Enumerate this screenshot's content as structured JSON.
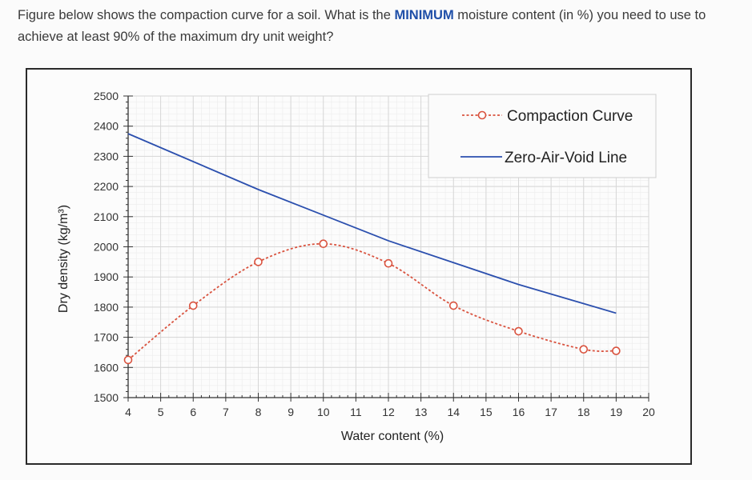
{
  "question": {
    "part1": "Figure below shows the compaction curve for a soil. What is the ",
    "emphasis": "MINIMUM",
    "part2": " moisture content (in %) you need to use to achieve at least 90% of the maximum dry unit weight?"
  },
  "colors": {
    "compaction": "#d9533f",
    "zav": "#2b4fae",
    "grid": "#d6d6d6",
    "axis": "#333333"
  },
  "chart_data": {
    "type": "line",
    "title": "",
    "xlabel": "Water content (%)",
    "ylabel": "Dry density (kg/m³)",
    "xlim": [
      4,
      20
    ],
    "ylim": [
      1500,
      2500
    ],
    "x_ticks": [
      4,
      5,
      6,
      7,
      8,
      9,
      10,
      11,
      12,
      13,
      14,
      15,
      16,
      17,
      18,
      19,
      20
    ],
    "y_ticks": [
      1500,
      1600,
      1700,
      1800,
      1900,
      2000,
      2100,
      2200,
      2300,
      2400,
      2500
    ],
    "grid": true,
    "legend_position": "top-right",
    "series": [
      {
        "name": "Compaction Curve",
        "style": "dashed-circle-markers",
        "x": [
          4,
          6,
          8,
          10,
          12,
          14,
          16,
          18,
          19
        ],
        "y": [
          1625,
          1805,
          1950,
          2010,
          1945,
          1805,
          1720,
          1660,
          1655
        ]
      },
      {
        "name": "Zero-Air-Void Line",
        "style": "solid",
        "x": [
          4,
          8,
          12,
          16,
          19
        ],
        "y": [
          2375,
          2190,
          2020,
          1875,
          1780
        ]
      }
    ]
  }
}
